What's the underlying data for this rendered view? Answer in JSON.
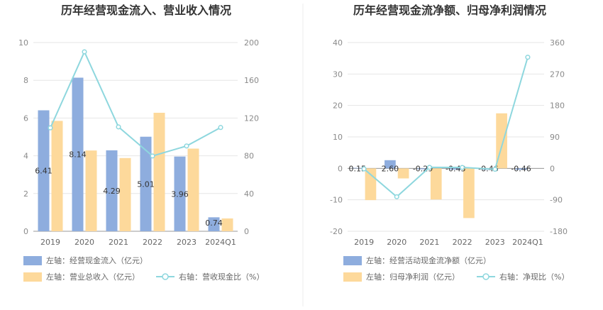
{
  "chart_data": [
    {
      "type": "bar",
      "title": "历年经营现金流入、营业收入情况",
      "categories": [
        "2019",
        "2020",
        "2021",
        "2022",
        "2023",
        "2024Q1"
      ],
      "left_axis": {
        "min": 0,
        "max": 10,
        "ticks": [
          "0",
          "2",
          "4",
          "6",
          "8",
          "10"
        ]
      },
      "right_axis": {
        "min": 0,
        "max": 200,
        "ticks": [
          "0",
          "40",
          "80",
          "120",
          "160",
          "200"
        ]
      },
      "series": [
        {
          "name": "左轴：经营现金流入（亿元）",
          "kind": "bar",
          "axis": "left",
          "color": "#8eadde",
          "values": [
            6.41,
            8.14,
            4.29,
            5.01,
            3.96,
            0.74
          ],
          "labels": [
            "6.41",
            "8.14",
            "4.29",
            "5.01",
            "3.96",
            "0.74"
          ]
        },
        {
          "name": "左轴：营业总收入（亿元）",
          "kind": "bar",
          "axis": "left",
          "color": "#fdd99b",
          "values": [
            5.85,
            4.28,
            3.88,
            6.28,
            4.38,
            0.68
          ]
        },
        {
          "name": "右轴：营收现金比（%）",
          "kind": "line",
          "axis": "right",
          "color": "#8ed7de",
          "values": [
            109.6,
            190.2,
            110.6,
            79.8,
            90.4,
            110
          ]
        }
      ],
      "grid": true
    },
    {
      "type": "bar",
      "title": "历年经营现金流净额、归母净利润情况",
      "categories": [
        "2019",
        "2020",
        "2021",
        "2022",
        "2023",
        "2024Q1"
      ],
      "left_axis": {
        "min": -20,
        "max": 40,
        "ticks": [
          "-20",
          "-10",
          "0",
          "10",
          "20",
          "30",
          "40"
        ]
      },
      "right_axis": {
        "min": -180,
        "max": 360,
        "ticks": [
          "-180",
          "-90",
          "0",
          "90",
          "180",
          "270",
          "360"
        ]
      },
      "series": [
        {
          "name": "左轴：经营活动现金流净额（亿元）",
          "kind": "bar",
          "axis": "left",
          "color": "#8eadde",
          "values": [
            0.15,
            2.6,
            -0.29,
            -0.43,
            -0.46,
            -0.46
          ],
          "labels": [
            "0.15",
            "2.60",
            "-0.29",
            "-0.43",
            "-0.46",
            "-0.46"
          ]
        },
        {
          "name": "左轴：归母净利润（亿元）",
          "kind": "bar",
          "axis": "left",
          "color": "#fdd99b",
          "values": [
            -10.1,
            -3.2,
            -9.9,
            -15.8,
            17.5,
            0
          ]
        },
        {
          "name": "右轴：净现比（%）",
          "kind": "line",
          "axis": "right",
          "color": "#8ed7de",
          "values": [
            -1.5,
            -81.3,
            2.9,
            2.7,
            -2.6,
            318
          ]
        }
      ],
      "grid": true
    }
  ]
}
